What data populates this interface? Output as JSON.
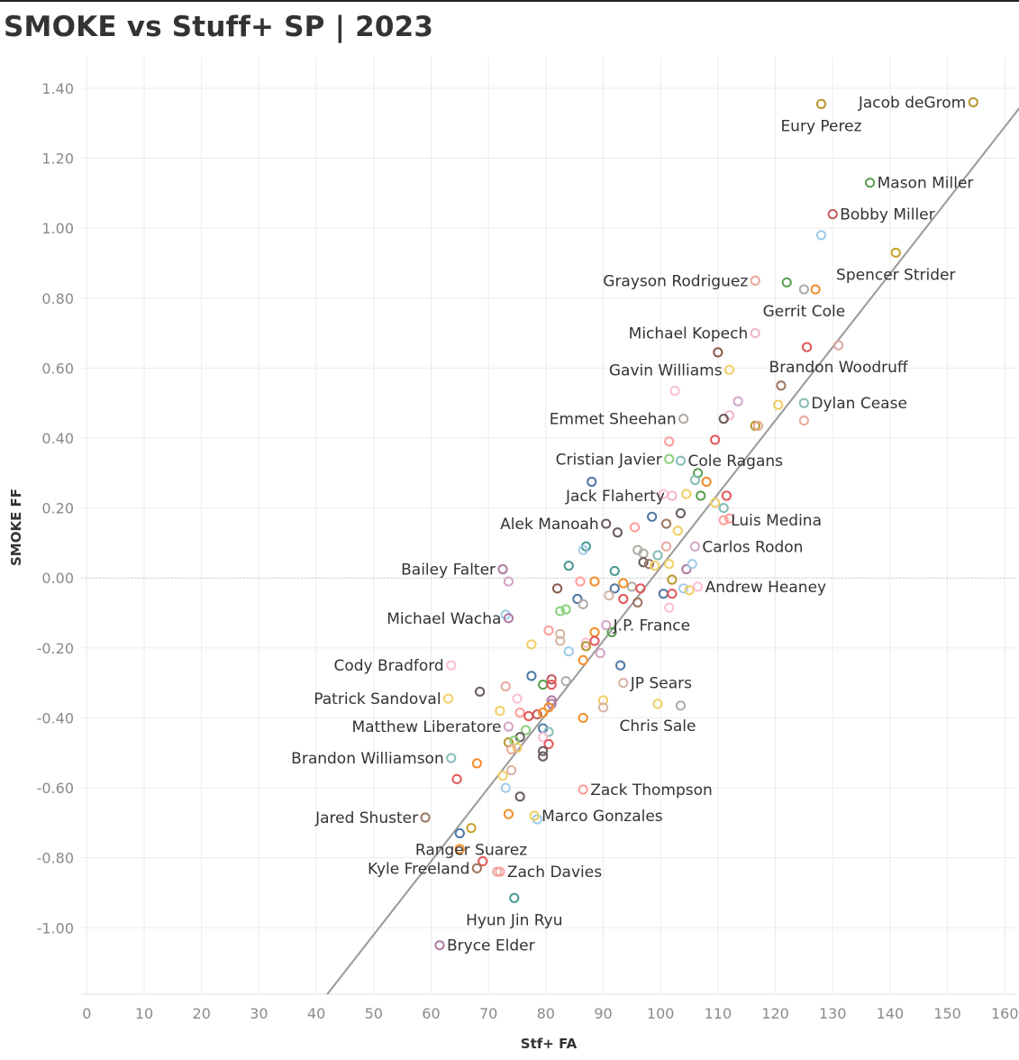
{
  "chart_data": {
    "type": "scatter",
    "title": "SMOKE vs Stuff+  SP | 2023",
    "xlabel": "Stf+ FA",
    "ylabel": "SMOKE FF",
    "xlim": [
      -1,
      162
    ],
    "ylim": [
      -1.19,
      1.49
    ],
    "xticks": [
      "0",
      "10",
      "20",
      "30",
      "40",
      "50",
      "60",
      "70",
      "80",
      "90",
      "100",
      "110",
      "120",
      "130",
      "140",
      "150",
      "160"
    ],
    "yticks": [
      "-1.00",
      "-0.80",
      "-0.60",
      "-0.40",
      "-0.20",
      "0.00",
      "0.20",
      "0.40",
      "0.60",
      "0.80",
      "1.00",
      "1.20",
      "1.40"
    ],
    "grid": true,
    "trendline": {
      "slope": 0.021,
      "intercept": -2.07
    },
    "labeled_points": [
      {
        "name": "Jacob deGrom",
        "x": 154.5,
        "y": 1.36,
        "color": "#b8962e",
        "side": "left"
      },
      {
        "name": "Eury Perez",
        "x": 128.0,
        "y": 1.355,
        "color": "#b8962e",
        "side": "below"
      },
      {
        "name": "Mason Miller",
        "x": 136.5,
        "y": 1.13,
        "color": "#59a14f",
        "side": "right"
      },
      {
        "name": "Bobby Miller",
        "x": 130.0,
        "y": 1.04,
        "color": "#c75a5f",
        "side": "right"
      },
      {
        "name": "Spencer Strider",
        "x": 141.0,
        "y": 0.93,
        "color": "#c9a227",
        "side": "below"
      },
      {
        "name": "Grayson Rodriguez",
        "x": 116.5,
        "y": 0.85,
        "color": "#e8a99b",
        "side": "left"
      },
      {
        "name": "Gerrit Cole",
        "x": 125.0,
        "y": 0.825,
        "color": "#b0aaa5",
        "side": "below"
      },
      {
        "name": "Michael Kopech",
        "x": 116.5,
        "y": 0.7,
        "color": "#f2b6c6",
        "side": "left"
      },
      {
        "name": "Brandon Woodruff",
        "x": 131.0,
        "y": 0.665,
        "color": "#d9a9a0",
        "side": "below"
      },
      {
        "name": "Gavin Williams",
        "x": 112.0,
        "y": 0.595,
        "color": "#f1ce63",
        "side": "left"
      },
      {
        "name": "Dylan Cease",
        "x": 125.0,
        "y": 0.5,
        "color": "#86bcb6",
        "side": "right"
      },
      {
        "name": "Emmet Sheehan",
        "x": 104.0,
        "y": 0.455,
        "color": "#b0aaa5",
        "side": "left"
      },
      {
        "name": "Cristian Javier",
        "x": 101.5,
        "y": 0.34,
        "color": "#8cd17d",
        "side": "left"
      },
      {
        "name": "Cole Ragans",
        "x": 103.5,
        "y": 0.335,
        "color": "#86bcb6",
        "side": "right"
      },
      {
        "name": "Jack Flaherty",
        "x": 102.0,
        "y": 0.235,
        "color": "#f2b6c6",
        "side": "left"
      },
      {
        "name": "Luis Medina",
        "x": 111.0,
        "y": 0.165,
        "color": "#ff9d9a",
        "side": "right"
      },
      {
        "name": "Alek Manoah",
        "x": 90.5,
        "y": 0.155,
        "color": "#6b5b5b",
        "side": "left"
      },
      {
        "name": "Carlos Rodon",
        "x": 106.0,
        "y": 0.09,
        "color": "#d4a6c8",
        "side": "right"
      },
      {
        "name": "Bailey Falter",
        "x": 72.5,
        "y": 0.025,
        "color": "#b07aa1",
        "side": "left"
      },
      {
        "name": "Andrew Heaney",
        "x": 106.5,
        "y": -0.025,
        "color": "#fabfd2",
        "side": "right"
      },
      {
        "name": "Michael Wacha",
        "x": 73.5,
        "y": -0.115,
        "color": "#b07aa1",
        "side": "left"
      },
      {
        "name": "J.P. France",
        "x": 90.5,
        "y": -0.135,
        "color": "#d4a6c8",
        "side": "right"
      },
      {
        "name": "Cody Bradford",
        "x": 63.5,
        "y": -0.25,
        "color": "#fabfd2",
        "side": "left"
      },
      {
        "name": "JP Sears",
        "x": 93.5,
        "y": -0.3,
        "color": "#d7b5a6",
        "side": "right"
      },
      {
        "name": "Patrick Sandoval",
        "x": 63.0,
        "y": -0.345,
        "color": "#f1ce63",
        "side": "left"
      },
      {
        "name": "Chris Sale",
        "x": 99.5,
        "y": -0.36,
        "color": "#f1ce63",
        "side": "below"
      },
      {
        "name": "Matthew Liberatore",
        "x": 73.5,
        "y": -0.425,
        "color": "#d4a6c8",
        "side": "left"
      },
      {
        "name": "Brandon Williamson",
        "x": 63.5,
        "y": -0.515,
        "color": "#86bcb6",
        "side": "left"
      },
      {
        "name": "Zack Thompson",
        "x": 86.5,
        "y": -0.605,
        "color": "#ff9d9a",
        "side": "right"
      },
      {
        "name": "Jared Shuster",
        "x": 59.0,
        "y": -0.685,
        "color": "#9c755f",
        "side": "left"
      },
      {
        "name": "Marco Gonzales",
        "x": 78.0,
        "y": -0.68,
        "color": "#f1ce63",
        "side": "right"
      },
      {
        "name": "Ranger Suarez",
        "x": 67.0,
        "y": -0.715,
        "color": "#c9a227",
        "side": "below"
      },
      {
        "name": "Kyle Freeland",
        "x": 68.0,
        "y": -0.83,
        "color": "#9c755f",
        "side": "left"
      },
      {
        "name": "Zach Davies",
        "x": 72.0,
        "y": -0.84,
        "color": "#ff9d9a",
        "side": "right"
      },
      {
        "name": "Hyun Jin Ryu",
        "x": 74.5,
        "y": -0.915,
        "color": "#499894",
        "side": "below"
      },
      {
        "name": "Bryce Elder",
        "x": 61.5,
        "y": -1.05,
        "color": "#b07aa1",
        "side": "right"
      }
    ],
    "other_points": [
      {
        "x": 128.0,
        "y": 0.98,
        "color": "#a0cbe8"
      },
      {
        "x": 122.0,
        "y": 0.845,
        "color": "#59a14f"
      },
      {
        "x": 127.0,
        "y": 0.825,
        "color": "#f28e2b"
      },
      {
        "x": 125.5,
        "y": 0.66,
        "color": "#e15759"
      },
      {
        "x": 110.0,
        "y": 0.645,
        "color": "#8c564b"
      },
      {
        "x": 121.0,
        "y": 0.55,
        "color": "#9c755f"
      },
      {
        "x": 102.5,
        "y": 0.535,
        "color": "#fabfd2"
      },
      {
        "x": 113.5,
        "y": 0.505,
        "color": "#d4a6c8"
      },
      {
        "x": 120.5,
        "y": 0.495,
        "color": "#f1ce63"
      },
      {
        "x": 112.0,
        "y": 0.465,
        "color": "#f2b6c6"
      },
      {
        "x": 111.0,
        "y": 0.455,
        "color": "#6b5b5b"
      },
      {
        "x": 125.0,
        "y": 0.45,
        "color": "#e8a99b"
      },
      {
        "x": 116.5,
        "y": 0.435,
        "color": "#b8962e"
      },
      {
        "x": 117.0,
        "y": 0.435,
        "color": "#e8a99b"
      },
      {
        "x": 101.5,
        "y": 0.39,
        "color": "#ff9d9a"
      },
      {
        "x": 109.5,
        "y": 0.395,
        "color": "#e15759"
      },
      {
        "x": 88.0,
        "y": 0.275,
        "color": "#4e79a7"
      },
      {
        "x": 106.5,
        "y": 0.3,
        "color": "#59a14f"
      },
      {
        "x": 106.0,
        "y": 0.28,
        "color": "#86bcb6"
      },
      {
        "x": 108.0,
        "y": 0.275,
        "color": "#f28e2b"
      },
      {
        "x": 100.5,
        "y": 0.24,
        "color": "#fabfd2"
      },
      {
        "x": 104.5,
        "y": 0.24,
        "color": "#f1ce63"
      },
      {
        "x": 107.0,
        "y": 0.235,
        "color": "#59a14f"
      },
      {
        "x": 111.5,
        "y": 0.235,
        "color": "#e15759"
      },
      {
        "x": 109.5,
        "y": 0.215,
        "color": "#f1ce63"
      },
      {
        "x": 111.0,
        "y": 0.2,
        "color": "#86bcb6"
      },
      {
        "x": 112.0,
        "y": 0.17,
        "color": "#ff9d9a"
      },
      {
        "x": 98.5,
        "y": 0.175,
        "color": "#4e79a7"
      },
      {
        "x": 103.5,
        "y": 0.185,
        "color": "#6b5b5b"
      },
      {
        "x": 101.0,
        "y": 0.155,
        "color": "#9c755f"
      },
      {
        "x": 95.5,
        "y": 0.145,
        "color": "#ff9d9a"
      },
      {
        "x": 92.5,
        "y": 0.13,
        "color": "#6b5b5b"
      },
      {
        "x": 103.0,
        "y": 0.135,
        "color": "#f1ce63"
      },
      {
        "x": 87.0,
        "y": 0.09,
        "color": "#499894"
      },
      {
        "x": 86.5,
        "y": 0.08,
        "color": "#a0cbe8"
      },
      {
        "x": 96.0,
        "y": 0.08,
        "color": "#b0aaa5"
      },
      {
        "x": 97.0,
        "y": 0.07,
        "color": "#b0aaa5"
      },
      {
        "x": 99.5,
        "y": 0.065,
        "color": "#86bcb6"
      },
      {
        "x": 101.0,
        "y": 0.09,
        "color": "#e8a99b"
      },
      {
        "x": 84.0,
        "y": 0.035,
        "color": "#499894"
      },
      {
        "x": 92.0,
        "y": 0.02,
        "color": "#499894"
      },
      {
        "x": 97.0,
        "y": 0.045,
        "color": "#6b5b5b"
      },
      {
        "x": 98.0,
        "y": 0.04,
        "color": "#9c755f"
      },
      {
        "x": 99.0,
        "y": 0.035,
        "color": "#f1ce63"
      },
      {
        "x": 101.5,
        "y": 0.04,
        "color": "#f1ce63"
      },
      {
        "x": 104.5,
        "y": 0.025,
        "color": "#b07aa1"
      },
      {
        "x": 105.5,
        "y": 0.04,
        "color": "#a0cbe8"
      },
      {
        "x": 73.5,
        "y": -0.01,
        "color": "#d4a6c8"
      },
      {
        "x": 86.0,
        "y": -0.01,
        "color": "#ff9d9a"
      },
      {
        "x": 88.5,
        "y": -0.01,
        "color": "#f28e2b"
      },
      {
        "x": 102.0,
        "y": -0.005,
        "color": "#b8962e"
      },
      {
        "x": 82.0,
        "y": -0.03,
        "color": "#8c564b"
      },
      {
        "x": 92.0,
        "y": -0.03,
        "color": "#4e79a7"
      },
      {
        "x": 95.0,
        "y": -0.025,
        "color": "#b0aaa5"
      },
      {
        "x": 96.5,
        "y": -0.03,
        "color": "#e15759"
      },
      {
        "x": 93.5,
        "y": -0.015,
        "color": "#f28e2b"
      },
      {
        "x": 91.0,
        "y": -0.05,
        "color": "#d7b5a6"
      },
      {
        "x": 100.5,
        "y": -0.045,
        "color": "#4e79a7"
      },
      {
        "x": 102.0,
        "y": -0.045,
        "color": "#e15759"
      },
      {
        "x": 104.0,
        "y": -0.03,
        "color": "#a0cbe8"
      },
      {
        "x": 105.0,
        "y": -0.035,
        "color": "#f1ce63"
      },
      {
        "x": 85.5,
        "y": -0.06,
        "color": "#4e79a7"
      },
      {
        "x": 86.5,
        "y": -0.075,
        "color": "#b0aaa5"
      },
      {
        "x": 93.5,
        "y": -0.06,
        "color": "#e15759"
      },
      {
        "x": 96.0,
        "y": -0.07,
        "color": "#9c755f"
      },
      {
        "x": 101.5,
        "y": -0.085,
        "color": "#fabfd2"
      },
      {
        "x": 82.5,
        "y": -0.095,
        "color": "#8cd17d"
      },
      {
        "x": 83.5,
        "y": -0.09,
        "color": "#8cd17d"
      },
      {
        "x": 73.0,
        "y": -0.105,
        "color": "#a0cbe8"
      },
      {
        "x": 91.5,
        "y": -0.155,
        "color": "#59a14f"
      },
      {
        "x": 80.5,
        "y": -0.15,
        "color": "#ff9d9a"
      },
      {
        "x": 82.5,
        "y": -0.16,
        "color": "#d7b5a6"
      },
      {
        "x": 82.5,
        "y": -0.18,
        "color": "#d7b5a6"
      },
      {
        "x": 88.5,
        "y": -0.155,
        "color": "#f28e2b"
      },
      {
        "x": 87.0,
        "y": -0.185,
        "color": "#fabfd2"
      },
      {
        "x": 88.5,
        "y": -0.18,
        "color": "#e15759"
      },
      {
        "x": 77.5,
        "y": -0.19,
        "color": "#f1ce63"
      },
      {
        "x": 87.0,
        "y": -0.195,
        "color": "#b8962e"
      },
      {
        "x": 84.0,
        "y": -0.21,
        "color": "#a0cbe8"
      },
      {
        "x": 89.5,
        "y": -0.215,
        "color": "#d4a6c8"
      },
      {
        "x": 86.5,
        "y": -0.235,
        "color": "#f28e2b"
      },
      {
        "x": 93.0,
        "y": -0.25,
        "color": "#4e79a7"
      },
      {
        "x": 77.5,
        "y": -0.28,
        "color": "#4e79a7"
      },
      {
        "x": 81.0,
        "y": -0.29,
        "color": "#c75a5f"
      },
      {
        "x": 83.5,
        "y": -0.295,
        "color": "#b0aaa5"
      },
      {
        "x": 79.5,
        "y": -0.305,
        "color": "#59a14f"
      },
      {
        "x": 81.0,
        "y": -0.305,
        "color": "#e15759"
      },
      {
        "x": 73.0,
        "y": -0.31,
        "color": "#e8a99b"
      },
      {
        "x": 68.5,
        "y": -0.325,
        "color": "#6b5b5b"
      },
      {
        "x": 75.0,
        "y": -0.345,
        "color": "#fabfd2"
      },
      {
        "x": 81.0,
        "y": -0.35,
        "color": "#b07aa1"
      },
      {
        "x": 81.0,
        "y": -0.36,
        "color": "#b07aa1"
      },
      {
        "x": 80.5,
        "y": -0.37,
        "color": "#f28e2b"
      },
      {
        "x": 90.0,
        "y": -0.35,
        "color": "#f1ce63"
      },
      {
        "x": 90.0,
        "y": -0.37,
        "color": "#d7b5a6"
      },
      {
        "x": 103.5,
        "y": -0.365,
        "color": "#b0aaa5"
      },
      {
        "x": 72.0,
        "y": -0.38,
        "color": "#f1ce63"
      },
      {
        "x": 75.5,
        "y": -0.385,
        "color": "#ff9d9a"
      },
      {
        "x": 77.0,
        "y": -0.395,
        "color": "#e15759"
      },
      {
        "x": 78.5,
        "y": -0.39,
        "color": "#c75a5f"
      },
      {
        "x": 79.5,
        "y": -0.385,
        "color": "#f28e2b"
      },
      {
        "x": 86.5,
        "y": -0.4,
        "color": "#f28e2b"
      },
      {
        "x": 79.5,
        "y": -0.43,
        "color": "#4e79a7"
      },
      {
        "x": 80.5,
        "y": -0.44,
        "color": "#86bcb6"
      },
      {
        "x": 76.5,
        "y": -0.435,
        "color": "#8cd17d"
      },
      {
        "x": 75.5,
        "y": -0.455,
        "color": "#6b5b5b"
      },
      {
        "x": 79.5,
        "y": -0.455,
        "color": "#fabfd2"
      },
      {
        "x": 73.5,
        "y": -0.47,
        "color": "#b8962e"
      },
      {
        "x": 74.5,
        "y": -0.465,
        "color": "#8cd17d"
      },
      {
        "x": 75.0,
        "y": -0.485,
        "color": "#f1ce63"
      },
      {
        "x": 80.5,
        "y": -0.475,
        "color": "#e15759"
      },
      {
        "x": 74.0,
        "y": -0.49,
        "color": "#e8a99b"
      },
      {
        "x": 79.5,
        "y": -0.495,
        "color": "#6b5b5b"
      },
      {
        "x": 79.5,
        "y": -0.51,
        "color": "#6b5b5b"
      },
      {
        "x": 68.0,
        "y": -0.53,
        "color": "#f28e2b"
      },
      {
        "x": 74.0,
        "y": -0.55,
        "color": "#d7b5a6"
      },
      {
        "x": 72.5,
        "y": -0.565,
        "color": "#f1ce63"
      },
      {
        "x": 64.5,
        "y": -0.575,
        "color": "#e15759"
      },
      {
        "x": 73.0,
        "y": -0.6,
        "color": "#a0cbe8"
      },
      {
        "x": 75.5,
        "y": -0.625,
        "color": "#6b5b5b"
      },
      {
        "x": 73.5,
        "y": -0.675,
        "color": "#f28e2b"
      },
      {
        "x": 78.5,
        "y": -0.69,
        "color": "#a0cbe8"
      },
      {
        "x": 65.0,
        "y": -0.73,
        "color": "#4e79a7"
      },
      {
        "x": 65.0,
        "y": -0.775,
        "color": "#f28e2b"
      },
      {
        "x": 69.0,
        "y": -0.81,
        "color": "#e15759"
      },
      {
        "x": 71.5,
        "y": -0.84,
        "color": "#e8a99b"
      }
    ]
  }
}
